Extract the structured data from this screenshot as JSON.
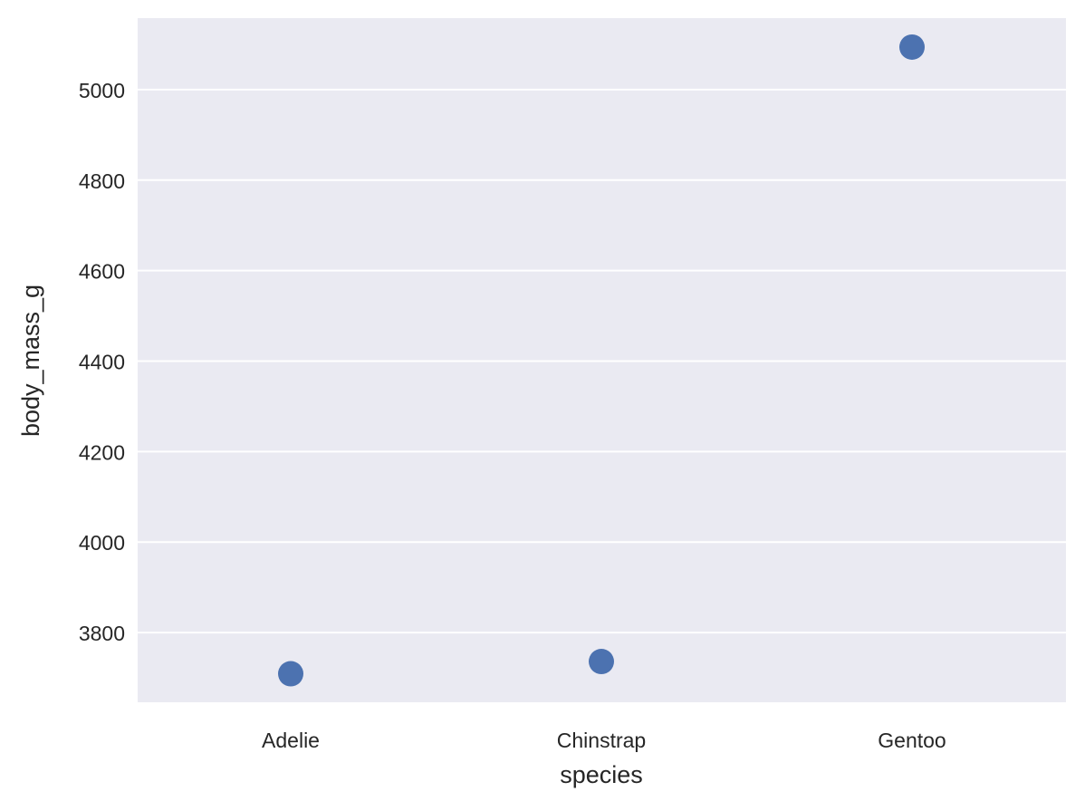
{
  "chart_data": {
    "type": "scatter",
    "xlabel": "species",
    "ylabel": "body_mass_g",
    "categories": [
      "Adelie",
      "Chinstrap",
      "Gentoo"
    ],
    "values": [
      3709,
      3736,
      5094
    ],
    "ylim": [
      3646,
      5158
    ],
    "yticks": [
      "3800",
      "4000",
      "4200",
      "4400",
      "4600",
      "4800",
      "5000"
    ],
    "grid": true,
    "colors": {
      "background": "#eaeaf2",
      "grid": "#ffffff",
      "marker": "#4c72b0"
    }
  }
}
